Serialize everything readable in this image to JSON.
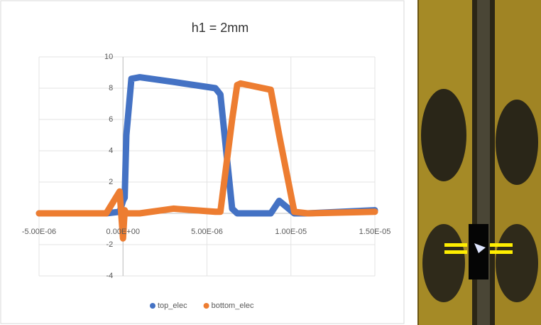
{
  "chart_data": {
    "type": "line",
    "title": "h1 = 2mm",
    "x": [
      -5e-06,
      -1e-06,
      -2e-07,
      0,
      1e-07,
      2e-07,
      5e-07,
      1e-06,
      3e-06,
      5.5e-06,
      5.8e-06,
      6.5e-06,
      6.8e-06,
      7e-06,
      8.8e-06,
      9.3e-06,
      1.02e-05,
      1.1e-05,
      1.5e-05
    ],
    "series": [
      {
        "name": "top_elec",
        "color": "#4472c4",
        "values": [
          0,
          0,
          0.1,
          0.8,
          1,
          5,
          8.6,
          8.7,
          8.4,
          8.0,
          7.6,
          0.3,
          0,
          0,
          0,
          0.8,
          0,
          0,
          0.2
        ]
      },
      {
        "name": "bottom_elec",
        "color": "#ed7d31",
        "values": [
          0,
          0,
          1.4,
          -1.6,
          0.2,
          0,
          0,
          0,
          0.3,
          0.1,
          0.1,
          6,
          8.2,
          8.3,
          7.9,
          5,
          0.1,
          0,
          0.1
        ]
      }
    ],
    "xlim": [
      -5e-06,
      1.5e-05
    ],
    "xticks": [
      {
        "value": -5e-06,
        "label": "-5.00E-06"
      },
      {
        "value": 0,
        "label": "0.00E+00"
      },
      {
        "value": 5e-06,
        "label": "5.00E-06"
      },
      {
        "value": 1e-05,
        "label": "1.00E-05"
      },
      {
        "value": 1.5e-05,
        "label": "1.50E-05"
      }
    ],
    "ylim": [
      -4,
      10
    ],
    "yticks": [
      -4,
      -2,
      0,
      2,
      4,
      6,
      8,
      10
    ],
    "grid": true,
    "legend": "bottom"
  }
}
